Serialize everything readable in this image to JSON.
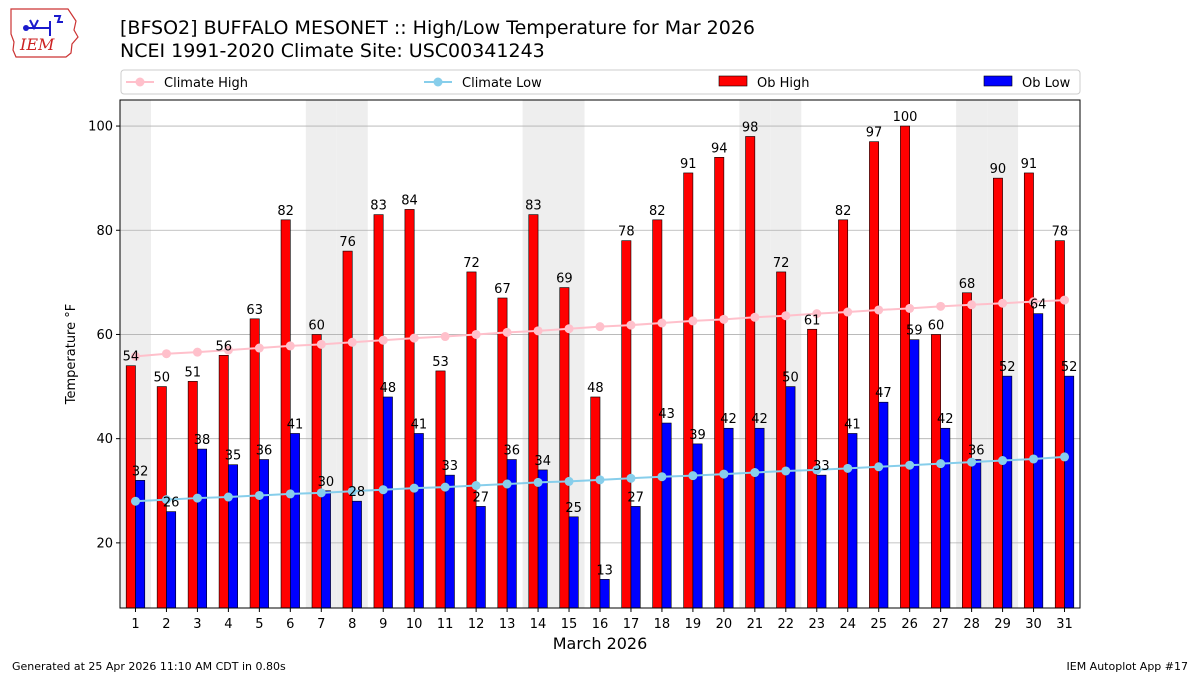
{
  "header": {
    "title_line1": "[BFSO2] BUFFALO MESONET :: High/Low Temperature for Mar 2026",
    "title_line2": "NCEI 1991-2020 Climate Site: USC00341243",
    "logo_text": "IEM"
  },
  "footer": {
    "generated": "Generated at 25 Apr 2026 11:10 AM CDT in 0.80s",
    "app": "IEM Autoplot App #17"
  },
  "colors": {
    "ob_high": "#ff0000",
    "ob_low": "#0000ff",
    "climate_high": "#ffc0cb",
    "climate_low": "#87ceeb",
    "weekend_band": "#eeeeee",
    "grid": "#b0b0b0"
  },
  "chart_data": {
    "type": "bar",
    "title": "[BFSO2] BUFFALO MESONET :: High/Low Temperature for Mar 2026",
    "xlabel": "March 2026",
    "ylabel": "Temperature °F",
    "ylim": [
      7.5,
      105
    ],
    "yticks": [
      20,
      40,
      60,
      80,
      100
    ],
    "grid": "horizontal",
    "legend_position": "top",
    "legend": [
      "Climate High",
      "Climate Low",
      "Ob High",
      "Ob Low"
    ],
    "categories": [
      "1",
      "2",
      "3",
      "4",
      "5",
      "6",
      "7",
      "8",
      "9",
      "10",
      "11",
      "12",
      "13",
      "14",
      "15",
      "16",
      "17",
      "18",
      "19",
      "20",
      "21",
      "22",
      "23",
      "24",
      "25",
      "26",
      "27",
      "28",
      "29",
      "30",
      "31"
    ],
    "shaded_days": [
      1,
      7,
      8,
      14,
      15,
      21,
      22,
      28,
      29
    ],
    "series": [
      {
        "name": "Ob High",
        "kind": "bar",
        "values": [
          54,
          50,
          51,
          56,
          63,
          82,
          60,
          76,
          83,
          84,
          53,
          72,
          67,
          83,
          69,
          48,
          78,
          82,
          91,
          94,
          98,
          72,
          61,
          82,
          97,
          100,
          60,
          68,
          90,
          91,
          78
        ]
      },
      {
        "name": "Ob Low",
        "kind": "bar",
        "values": [
          32,
          26,
          38,
          35,
          36,
          41,
          30,
          28,
          48,
          41,
          33,
          27,
          36,
          34,
          25,
          13,
          27,
          43,
          39,
          42,
          42,
          50,
          33,
          41,
          47,
          59,
          42,
          36,
          52,
          64,
          52
        ]
      },
      {
        "name": "Climate High",
        "kind": "line",
        "values": [
          55.8,
          56.3,
          56.6,
          57.0,
          57.4,
          57.8,
          58.1,
          58.5,
          58.9,
          59.3,
          59.6,
          60.0,
          60.4,
          60.7,
          61.1,
          61.5,
          61.8,
          62.2,
          62.6,
          62.9,
          63.3,
          63.6,
          64.0,
          64.3,
          64.7,
          65.0,
          65.4,
          65.7,
          66.0,
          66.3,
          66.6
        ]
      },
      {
        "name": "Climate Low",
        "kind": "line",
        "values": [
          28.0,
          28.3,
          28.6,
          28.8,
          29.1,
          29.4,
          29.6,
          29.9,
          30.2,
          30.5,
          30.7,
          31.0,
          31.3,
          31.6,
          31.8,
          32.1,
          32.4,
          32.7,
          32.9,
          33.2,
          33.5,
          33.8,
          34.0,
          34.3,
          34.6,
          34.9,
          35.2,
          35.5,
          35.8,
          36.1,
          36.5
        ]
      }
    ]
  }
}
